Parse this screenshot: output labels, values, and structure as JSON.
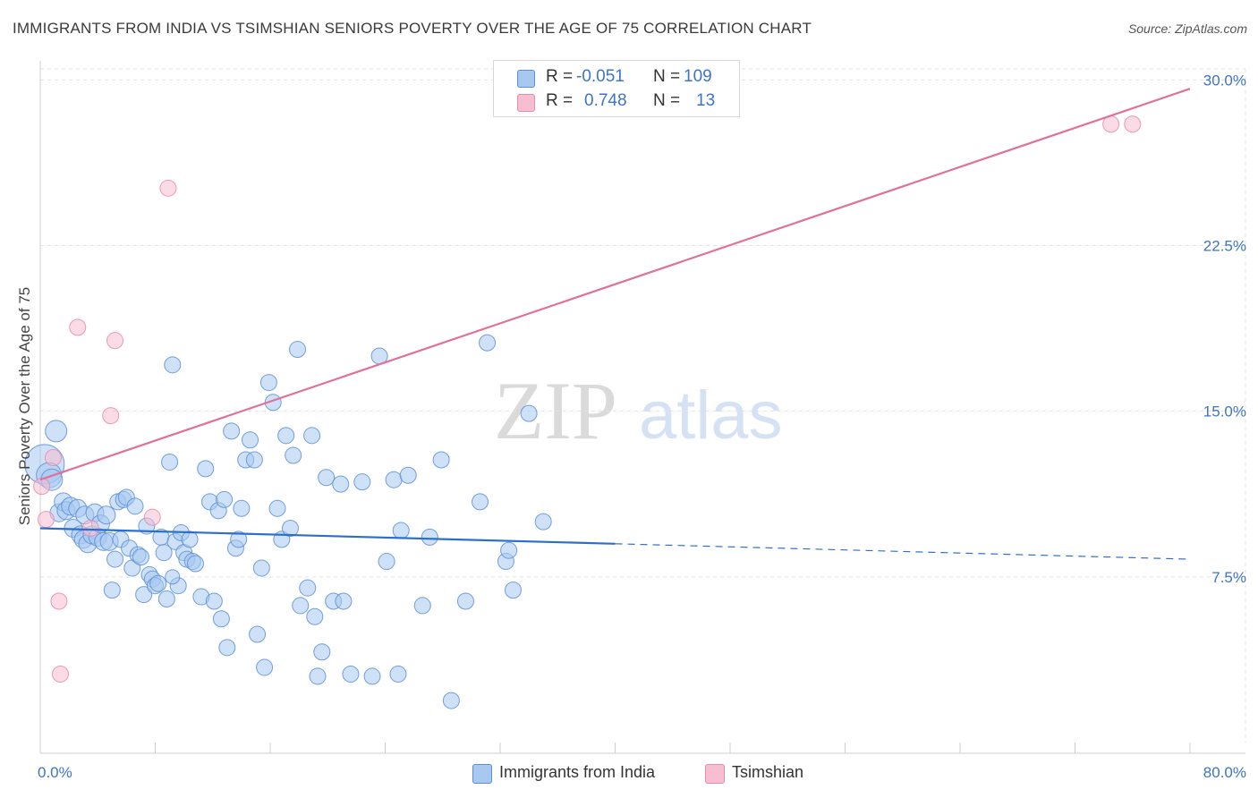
{
  "title": "IMMIGRANTS FROM INDIA VS TSIMSHIAN SENIORS POVERTY OVER THE AGE OF 75 CORRELATION CHART",
  "source": "Source: ZipAtlas.com",
  "watermark": {
    "zip": "ZIP",
    "atlas": "atlas"
  },
  "legend": {
    "rows": [
      {
        "r_label": "R = ",
        "r_value": "-0.051",
        "n_label": "N = ",
        "n_value": "109",
        "color": "#a8c8f0",
        "edge": "#5a8fd6"
      },
      {
        "r_label": "R = ",
        "r_value": "0.748",
        "n_label": "N = ",
        "n_value": "13",
        "color": "#f7bdd0",
        "edge": "#e88aa8"
      }
    ]
  },
  "bottom_legend": [
    {
      "label": "Immigrants from India",
      "color": "#a8c8f0",
      "edge": "#5a8fd6"
    },
    {
      "label": "Tsimshian",
      "color": "#f7bdd0",
      "edge": "#e88aa8"
    }
  ],
  "chart_data": {
    "type": "scatter",
    "title": "IMMIGRANTS FROM INDIA VS TSIMSHIAN SENIORS POVERTY OVER THE AGE OF 75 CORRELATION CHART",
    "xlabel": "",
    "ylabel": "Seniors Poverty Over the Age of 75",
    "xlim": [
      0,
      80
    ],
    "ylim": [
      0,
      30.5
    ],
    "x_tick_labels": [
      "0.0%",
      "80.0%"
    ],
    "y_ticks": [
      7.5,
      15.0,
      22.5,
      30.0
    ],
    "y_tick_labels": [
      "7.5%",
      "15.0%",
      "22.5%",
      "30.0%"
    ],
    "series": [
      {
        "name": "Immigrants from India",
        "color": "#a8c8f0",
        "edge": "#5a8fd6",
        "line_color": "#2b6fcc",
        "trend": {
          "x0": 0,
          "y0": 9.7,
          "x1": 40,
          "y1": 9.0,
          "dash_x1": 80,
          "dash_y1": 8.3
        },
        "points": [
          [
            0.3,
            12.6,
            22
          ],
          [
            0.6,
            12.1,
            14
          ],
          [
            0.8,
            11.9,
            12
          ],
          [
            1.1,
            14.1,
            12
          ],
          [
            1.3,
            10.4,
            10
          ],
          [
            1.6,
            10.9,
            10
          ],
          [
            1.8,
            10.5,
            10
          ],
          [
            2.1,
            10.7,
            10
          ],
          [
            2.3,
            9.7,
            10
          ],
          [
            2.6,
            10.6,
            10
          ],
          [
            2.8,
            9.4,
            10
          ],
          [
            3.0,
            9.2,
            10
          ],
          [
            3.1,
            10.3,
            10
          ],
          [
            3.3,
            9.0,
            10
          ],
          [
            3.6,
            9.4,
            10
          ],
          [
            3.8,
            10.4,
            10
          ],
          [
            4.0,
            9.3,
            10
          ],
          [
            4.2,
            9.9,
            10
          ],
          [
            4.4,
            9.1,
            10
          ],
          [
            4.6,
            10.3,
            10
          ],
          [
            4.8,
            9.1,
            10
          ],
          [
            5.0,
            6.9,
            9
          ],
          [
            5.2,
            8.3,
            9
          ],
          [
            5.4,
            10.9,
            9
          ],
          [
            5.6,
            9.2,
            9
          ],
          [
            5.8,
            11.0,
            9
          ],
          [
            6.0,
            11.1,
            9
          ],
          [
            6.2,
            8.8,
            9
          ],
          [
            6.4,
            7.9,
            9
          ],
          [
            6.6,
            10.7,
            9
          ],
          [
            6.8,
            8.5,
            9
          ],
          [
            7.0,
            8.4,
            9
          ],
          [
            7.2,
            6.7,
            9
          ],
          [
            7.4,
            9.8,
            9
          ],
          [
            7.6,
            7.6,
            9
          ],
          [
            7.8,
            7.4,
            9
          ],
          [
            8.0,
            7.1,
            9
          ],
          [
            8.2,
            7.2,
            9
          ],
          [
            8.4,
            9.3,
            9
          ],
          [
            8.6,
            8.6,
            9
          ],
          [
            8.8,
            6.5,
            9
          ],
          [
            9.0,
            12.7,
            9
          ],
          [
            9.2,
            17.1,
            9
          ],
          [
            9.4,
            9.1,
            9
          ],
          [
            9.6,
            7.1,
            9
          ],
          [
            9.8,
            9.5,
            9
          ],
          [
            10.0,
            8.6,
            9
          ],
          [
            10.2,
            8.3,
            9
          ],
          [
            10.4,
            9.2,
            9
          ],
          [
            10.6,
            8.2,
            9
          ],
          [
            10.8,
            8.1,
            9
          ],
          [
            11.2,
            6.6,
            9
          ],
          [
            11.5,
            12.4,
            9
          ],
          [
            11.8,
            10.9,
            9
          ],
          [
            12.1,
            6.4,
            9
          ],
          [
            12.4,
            10.5,
            9
          ],
          [
            12.6,
            5.6,
            9
          ],
          [
            12.8,
            11.0,
            9
          ],
          [
            13.0,
            4.3,
            9
          ],
          [
            13.3,
            14.1,
            9
          ],
          [
            13.6,
            8.8,
            9
          ],
          [
            13.8,
            9.2,
            9
          ],
          [
            14.0,
            10.6,
            9
          ],
          [
            14.3,
            12.8,
            9
          ],
          [
            14.6,
            13.7,
            9
          ],
          [
            14.9,
            12.8,
            9
          ],
          [
            15.1,
            4.9,
            9
          ],
          [
            15.4,
            7.9,
            9
          ],
          [
            15.6,
            3.4,
            9
          ],
          [
            15.9,
            16.3,
            9
          ],
          [
            16.2,
            15.4,
            9
          ],
          [
            16.5,
            10.6,
            9
          ],
          [
            16.8,
            9.2,
            9
          ],
          [
            17.1,
            13.9,
            9
          ],
          [
            17.4,
            9.7,
            9
          ],
          [
            17.6,
            13.0,
            9
          ],
          [
            17.9,
            17.8,
            9
          ],
          [
            18.1,
            6.2,
            9
          ],
          [
            18.6,
            7.0,
            9
          ],
          [
            18.9,
            13.9,
            9
          ],
          [
            19.1,
            5.7,
            9
          ],
          [
            19.3,
            3.0,
            9
          ],
          [
            19.6,
            4.1,
            9
          ],
          [
            19.9,
            12.0,
            9
          ],
          [
            20.4,
            6.4,
            9
          ],
          [
            20.9,
            11.7,
            9
          ],
          [
            21.1,
            6.4,
            9
          ],
          [
            21.6,
            3.1,
            9
          ],
          [
            22.4,
            11.8,
            9
          ],
          [
            23.1,
            3.0,
            9
          ],
          [
            23.6,
            17.5,
            9
          ],
          [
            24.1,
            8.2,
            9
          ],
          [
            24.6,
            11.9,
            9
          ],
          [
            24.9,
            3.1,
            9
          ],
          [
            25.1,
            9.6,
            9
          ],
          [
            25.6,
            12.1,
            9
          ],
          [
            26.6,
            6.2,
            9
          ],
          [
            27.1,
            9.3,
            9
          ],
          [
            27.9,
            12.8,
            9
          ],
          [
            28.6,
            1.9,
            9
          ],
          [
            29.6,
            6.4,
            9
          ],
          [
            30.6,
            10.9,
            9
          ],
          [
            31.1,
            18.1,
            9
          ],
          [
            32.4,
            8.2,
            9
          ],
          [
            32.6,
            8.7,
            9
          ],
          [
            32.9,
            6.9,
            9
          ],
          [
            34.0,
            14.9,
            9
          ],
          [
            35.0,
            10.0,
            9
          ],
          [
            9.2,
            7.5,
            8
          ]
        ]
      },
      {
        "name": "Tsimshian",
        "color": "#f7bdd0",
        "edge": "#e88aa8",
        "line_color": "#e0719a",
        "trend": {
          "x0": 0,
          "y0": 11.9,
          "x1": 80,
          "y1": 29.6
        },
        "points": [
          [
            0.1,
            11.6,
            9
          ],
          [
            0.4,
            10.1,
            9
          ],
          [
            0.9,
            12.9,
            9
          ],
          [
            1.3,
            6.4,
            9
          ],
          [
            1.4,
            3.1,
            9
          ],
          [
            2.6,
            18.8,
            9
          ],
          [
            3.5,
            9.7,
            9
          ],
          [
            4.9,
            14.8,
            9
          ],
          [
            5.2,
            18.2,
            9
          ],
          [
            7.8,
            10.2,
            9
          ],
          [
            8.9,
            25.1,
            9
          ],
          [
            74.5,
            28.0,
            9
          ],
          [
            76.0,
            28.0,
            9
          ]
        ]
      }
    ]
  }
}
